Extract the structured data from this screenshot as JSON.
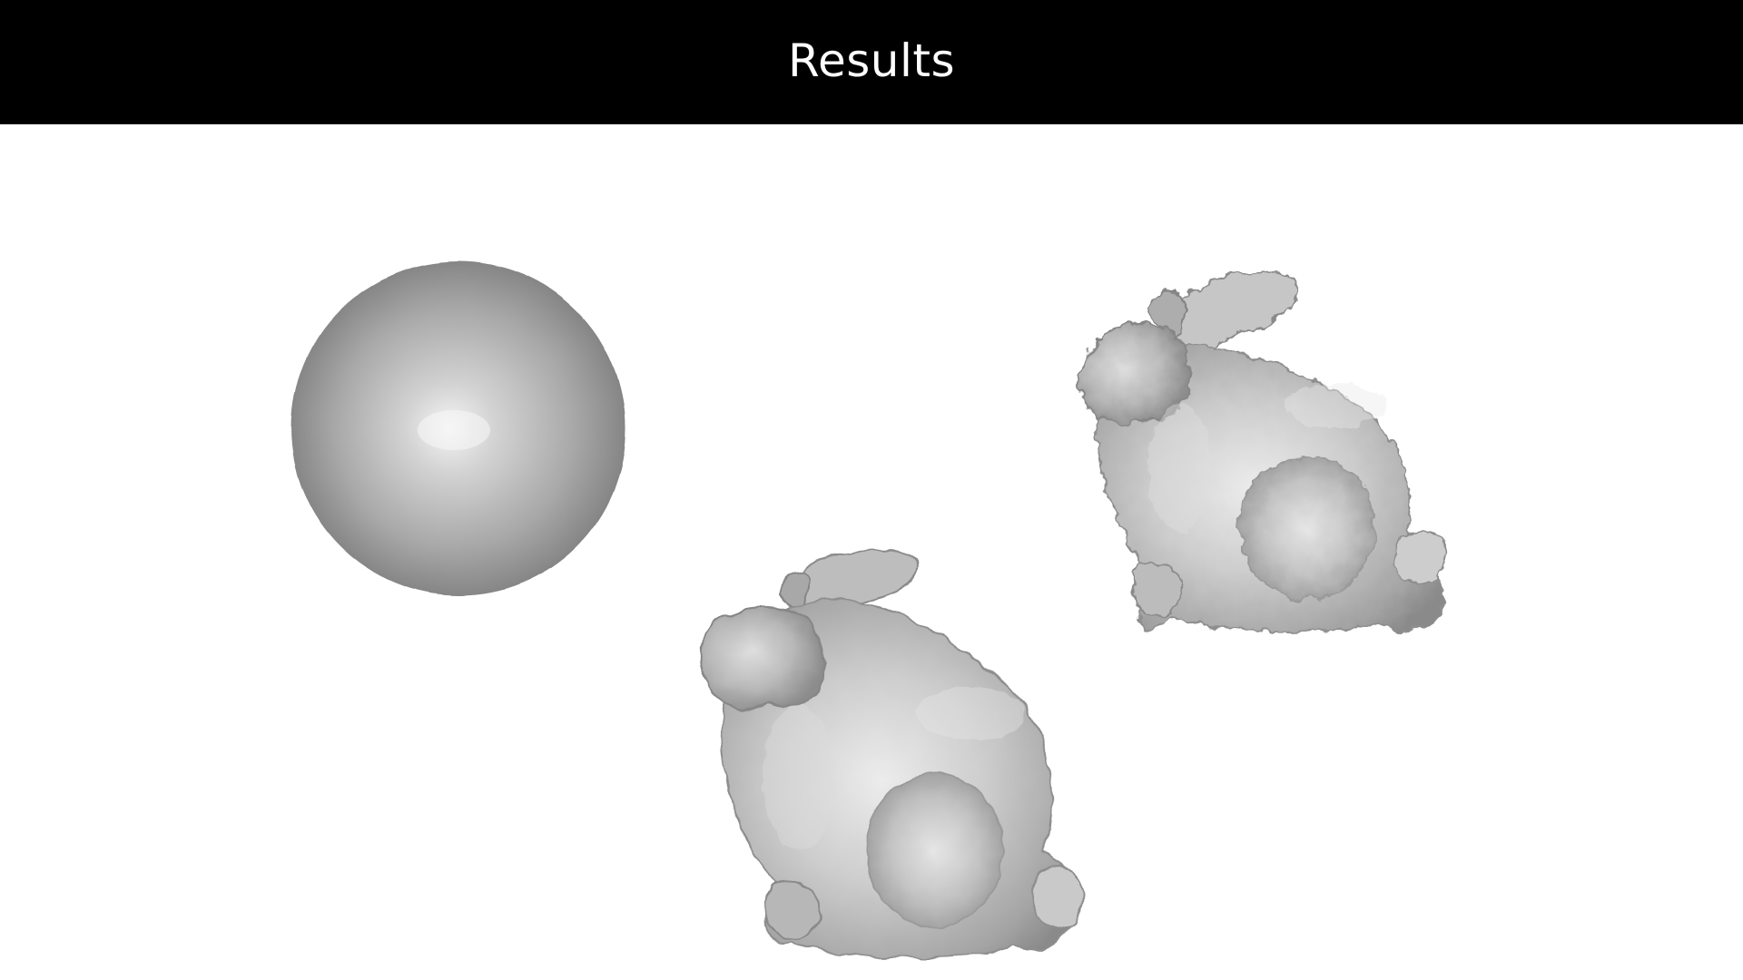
{
  "slide": {
    "title": "Results"
  },
  "figures": [
    {
      "name": "sphere-mesh",
      "kind": "sphere"
    },
    {
      "name": "bunny-mesh-front",
      "kind": "bunny"
    },
    {
      "name": "bunny-mesh-rough",
      "kind": "bunny"
    }
  ],
  "colors": {
    "title_bar": "#000000",
    "title_text": "#ffffff",
    "background": "#ffffff",
    "mesh_light": "#e2e2e2",
    "mesh_mid": "#b5b5b5",
    "mesh_dark": "#7c7c7c"
  }
}
